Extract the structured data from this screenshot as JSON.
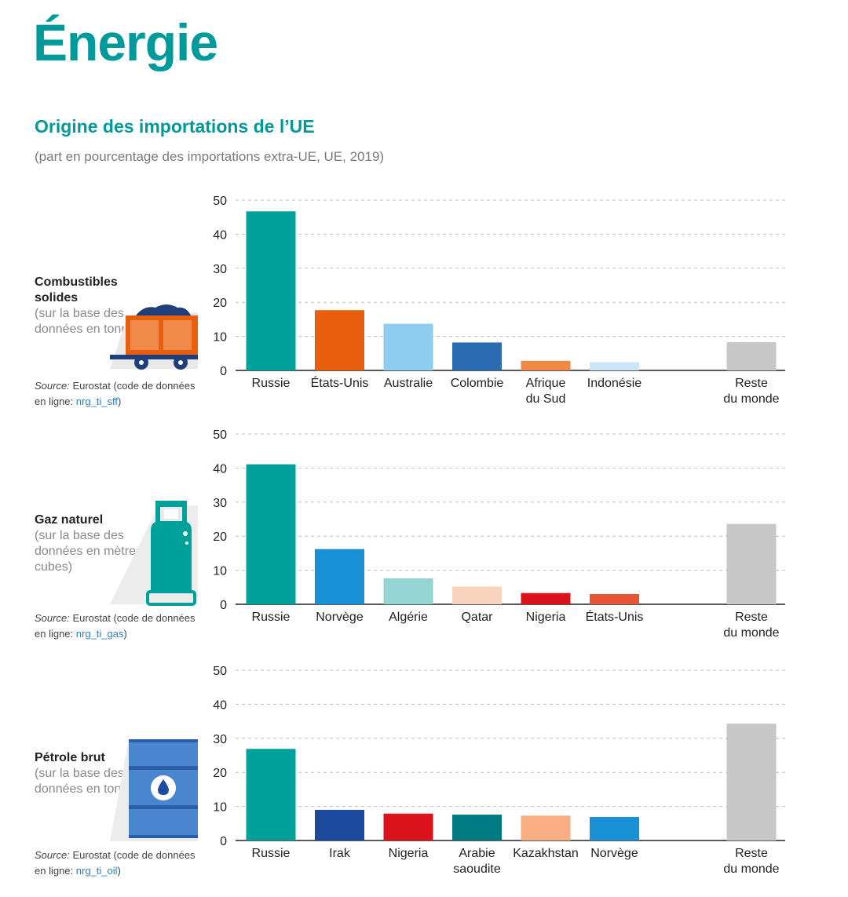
{
  "header": {
    "title": "Énergie",
    "subtitle": "Origine des importations de l’UE",
    "note": "(part en pourcentage des importations extra-UE, UE, 2019)"
  },
  "colors": {
    "teal": "#00a19b",
    "orange_dark": "#e8600f",
    "light_blue": "#8ecdf0",
    "mid_blue": "#2b6cb3",
    "orange": "#ee8a45",
    "pale_blue": "#c8e6f7",
    "grey": "#c8c8c8",
    "bright_blue": "#1990d6",
    "light_teal": "#94d4d2",
    "peach": "#f8d4bf",
    "red": "#d9121b",
    "red2": "#e85536",
    "navy": "#1c4a9c",
    "dark_teal": "#007a83",
    "salmon": "#f6ae82",
    "accent_title": "#009a9b"
  },
  "panels": [
    {
      "name": "Combustibles solides",
      "basis": "(sur la base des données en tonnes)",
      "source_label": "Source:",
      "source_text": "Eurostat (code de données en ligne:",
      "source_code": "nrg_ti_sff",
      "source_close": ")",
      "icon": "coal-wagon-icon"
    },
    {
      "name": "Gaz naturel",
      "basis": "(sur la base des données en mètres cubes)",
      "source_label": "Source:",
      "source_text": "Eurostat (code de données en ligne:",
      "source_code": "nrg_ti_gas",
      "source_close": ")",
      "icon": "gas-cylinder-icon"
    },
    {
      "name": "Pétrole brut",
      "basis": "(sur la base des données en tonnes)",
      "source_label": "Source:",
      "source_text": "Eurostat (code de données en ligne:",
      "source_code": "nrg_ti_oil",
      "source_close": ")",
      "icon": "oil-barrel-icon"
    }
  ],
  "chart_data": [
    {
      "type": "bar",
      "title": "Combustibles solides",
      "xlabel": "",
      "ylabel": "",
      "ylim": [
        0,
        50
      ],
      "yticks": [
        0,
        10,
        20,
        30,
        40,
        50
      ],
      "grid": true,
      "categories": [
        "Russie",
        "États-Unis",
        "Australie",
        "Colombie",
        "Afrique du Sud",
        "Indonésie",
        "Reste du monde"
      ],
      "values": [
        46.7,
        17.7,
        13.7,
        8.2,
        2.8,
        2.4,
        8.3
      ],
      "colors": [
        "#00a19b",
        "#e8600f",
        "#8ecdf0",
        "#2b6cb3",
        "#ee8a45",
        "#c8e6f7",
        "#c8c8c8"
      ]
    },
    {
      "type": "bar",
      "title": "Gaz naturel",
      "xlabel": "",
      "ylabel": "",
      "ylim": [
        0,
        50
      ],
      "yticks": [
        0,
        10,
        20,
        30,
        40,
        50
      ],
      "grid": true,
      "categories": [
        "Russie",
        "Norvège",
        "Algérie",
        "Qatar",
        "Nigeria",
        "États-Unis",
        "Reste du monde"
      ],
      "values": [
        41.1,
        16.2,
        7.6,
        5.2,
        3.3,
        3.0,
        23.6
      ],
      "colors": [
        "#00a19b",
        "#1990d6",
        "#94d4d2",
        "#f8d4bf",
        "#d9121b",
        "#e85536",
        "#c8c8c8"
      ]
    },
    {
      "type": "bar",
      "title": "Pétrole brut",
      "xlabel": "",
      "ylabel": "",
      "ylim": [
        0,
        50
      ],
      "yticks": [
        0,
        10,
        20,
        30,
        40,
        50
      ],
      "grid": true,
      "categories": [
        "Russie",
        "Irak",
        "Nigeria",
        "Arabie saoudite",
        "Kazakhstan",
        "Norvège",
        "Reste du monde"
      ],
      "values": [
        26.9,
        9.0,
        7.9,
        7.6,
        7.3,
        6.9,
        34.3
      ],
      "colors": [
        "#00a19b",
        "#1c4a9c",
        "#d9121b",
        "#007a83",
        "#f6ae82",
        "#1990d6",
        "#c8c8c8"
      ]
    }
  ]
}
